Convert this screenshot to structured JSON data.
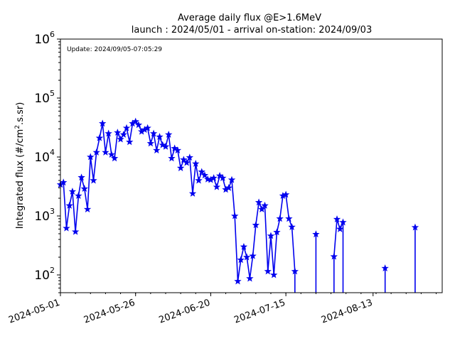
{
  "chart_data": {
    "type": "line",
    "title": "Average daily flux @E>1.6MeV",
    "subtitle": "launch : 2024/05/01 - arrival on-station: 2024/09/03",
    "annotation": "Update: 2024/09/05-07:05:29",
    "ylabel_parts": {
      "prefix": "Integrated flux (#/cm",
      "superscript": "2",
      "suffix": ".s.sr)"
    },
    "xlabel": "",
    "y_scale": "log",
    "ylim": [
      50,
      1000000
    ],
    "xlim": [
      "2024-05-01",
      "2024-09-05"
    ],
    "x_ticks": [
      "2024-05-01",
      "2024-05-26",
      "2024-06-20",
      "2024-07-15",
      "2024-08-13"
    ],
    "y_ticks": [
      {
        "value": 100,
        "base": "10",
        "exp": "2"
      },
      {
        "value": 1000,
        "base": "10",
        "exp": "3"
      },
      {
        "value": 10000,
        "base": "10",
        "exp": "4"
      },
      {
        "value": 100000,
        "base": "10",
        "exp": "5"
      },
      {
        "value": 1000000,
        "base": "10",
        "exp": "6"
      }
    ],
    "series_color": "#0000ee",
    "marker": "star",
    "segments": [
      {
        "points": [
          [
            "2024-05-01",
            3400
          ],
          [
            "2024-05-02",
            3700
          ],
          [
            "2024-05-03",
            620
          ],
          [
            "2024-05-04",
            1500
          ],
          [
            "2024-05-05",
            2600
          ],
          [
            "2024-05-06",
            540
          ],
          [
            "2024-05-07",
            2200
          ],
          [
            "2024-05-08",
            4500
          ],
          [
            "2024-05-09",
            2900
          ],
          [
            "2024-05-10",
            1300
          ],
          [
            "2024-05-11",
            10000
          ],
          [
            "2024-05-12",
            4000
          ],
          [
            "2024-05-13",
            12000
          ],
          [
            "2024-05-14",
            21000
          ],
          [
            "2024-05-15",
            37000
          ],
          [
            "2024-05-16",
            12000
          ],
          [
            "2024-05-17",
            25000
          ],
          [
            "2024-05-18",
            11000
          ],
          [
            "2024-05-19",
            9500
          ],
          [
            "2024-05-20",
            26000
          ],
          [
            "2024-05-21",
            20000
          ],
          [
            "2024-05-22",
            24000
          ],
          [
            "2024-05-23",
            31000
          ],
          [
            "2024-05-24",
            18000
          ],
          [
            "2024-05-25",
            37000
          ],
          [
            "2024-05-26",
            40000
          ],
          [
            "2024-05-27",
            35000
          ],
          [
            "2024-05-28",
            27000
          ],
          [
            "2024-05-29",
            29000
          ],
          [
            "2024-05-30",
            31000
          ],
          [
            "2024-05-31",
            17000
          ],
          [
            "2024-06-01",
            25000
          ],
          [
            "2024-06-02",
            13000
          ],
          [
            "2024-06-03",
            22000
          ],
          [
            "2024-06-04",
            16000
          ],
          [
            "2024-06-05",
            15000
          ],
          [
            "2024-06-06",
            24000
          ],
          [
            "2024-06-07",
            9500
          ],
          [
            "2024-06-08",
            14000
          ],
          [
            "2024-06-09",
            13000
          ],
          [
            "2024-06-10",
            6500
          ],
          [
            "2024-06-11",
            9000
          ],
          [
            "2024-06-12",
            8000
          ],
          [
            "2024-06-13",
            9800
          ],
          [
            "2024-06-14",
            2400
          ],
          [
            "2024-06-15",
            7700
          ],
          [
            "2024-06-16",
            4000
          ],
          [
            "2024-06-17",
            5600
          ],
          [
            "2024-06-18",
            4900
          ],
          [
            "2024-06-19",
            4200
          ],
          [
            "2024-06-20",
            4100
          ],
          [
            "2024-06-21",
            4400
          ],
          [
            "2024-06-22",
            3100
          ],
          [
            "2024-06-23",
            4800
          ],
          [
            "2024-06-24",
            4400
          ],
          [
            "2024-06-25",
            2800
          ],
          [
            "2024-06-26",
            3000
          ],
          [
            "2024-06-27",
            4100
          ],
          [
            "2024-06-28",
            1000
          ],
          [
            "2024-06-29",
            78
          ],
          [
            "2024-06-30",
            180
          ],
          [
            "2024-07-01",
            300
          ],
          [
            "2024-07-02",
            200
          ],
          [
            "2024-07-03",
            87
          ],
          [
            "2024-07-04",
            210
          ],
          [
            "2024-07-05",
            700
          ],
          [
            "2024-07-06",
            1700
          ],
          [
            "2024-07-07",
            1300
          ],
          [
            "2024-07-08",
            1500
          ],
          [
            "2024-07-09",
            115
          ],
          [
            "2024-07-10",
            460
          ],
          [
            "2024-07-11",
            100
          ],
          [
            "2024-07-12",
            530
          ],
          [
            "2024-07-13",
            900
          ],
          [
            "2024-07-14",
            2200
          ],
          [
            "2024-07-15",
            2300
          ],
          [
            "2024-07-16",
            900
          ],
          [
            "2024-07-17",
            650
          ],
          [
            "2024-07-18",
            115
          ]
        ],
        "drop_after": true
      },
      {
        "points": [
          [
            "2024-07-25",
            490
          ]
        ],
        "drop_before": true,
        "drop_after": true
      },
      {
        "points": [
          [
            "2024-07-31",
            205
          ],
          [
            "2024-08-01",
            880
          ],
          [
            "2024-08-02",
            600
          ],
          [
            "2024-08-03",
            780
          ]
        ],
        "drop_before": true,
        "drop_after": true
      },
      {
        "points": [
          [
            "2024-08-17",
            130
          ]
        ],
        "drop_before": true,
        "drop_after": true
      },
      {
        "points": [
          [
            "2024-08-27",
            640
          ]
        ],
        "drop_before": true,
        "drop_after": true
      }
    ]
  }
}
